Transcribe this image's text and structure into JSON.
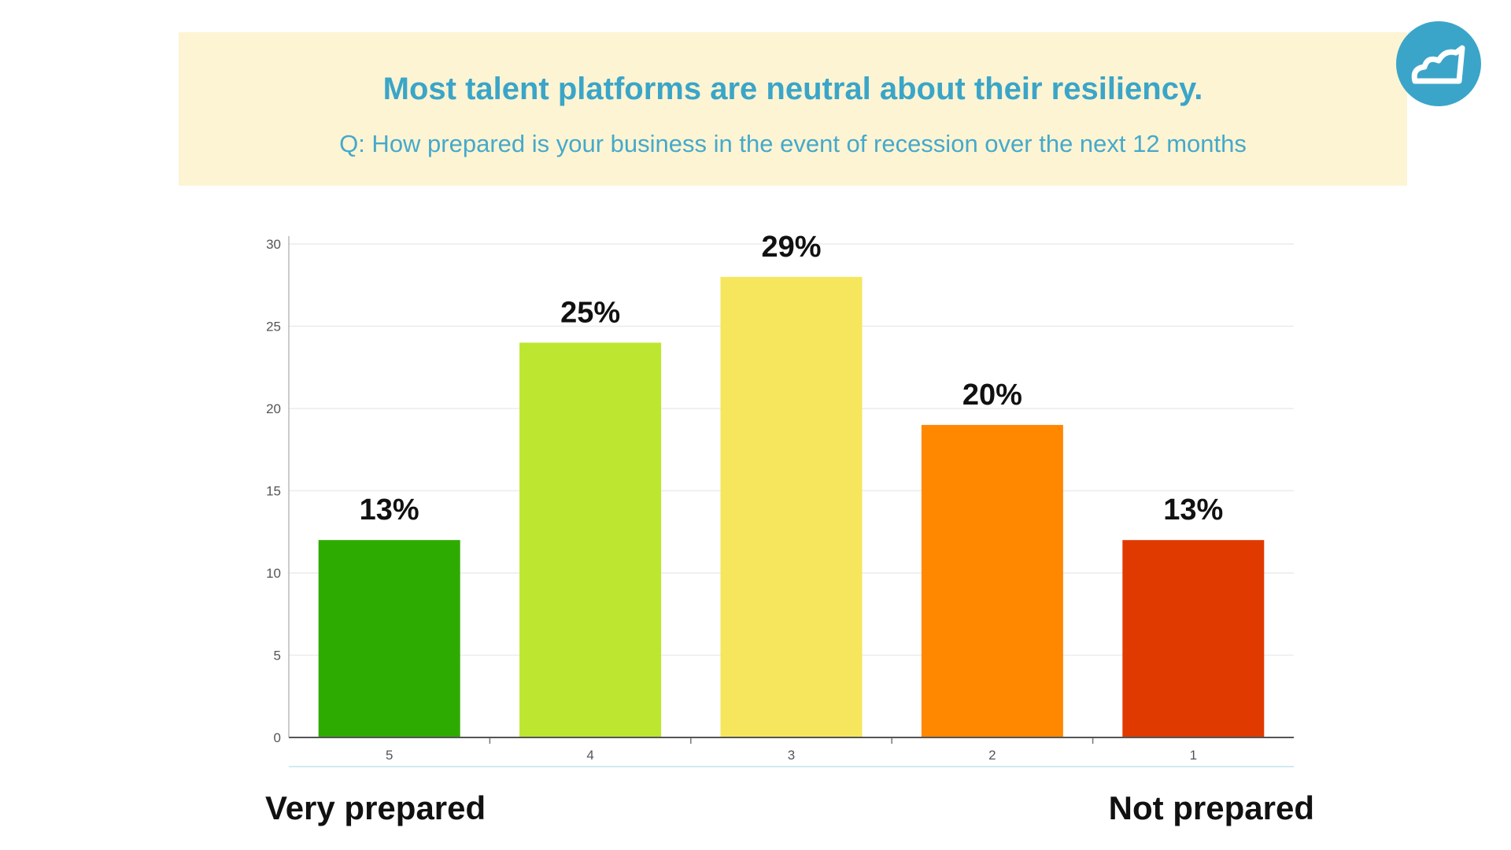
{
  "header": {
    "title": "Most talent platforms are neutral about their resiliency.",
    "subtitle": "Q: How prepared is your business in the event of recession over the next 12 months"
  },
  "logo": {
    "icon": "cloud-icon",
    "color": "#3aa5c8"
  },
  "scale_labels": {
    "left": "Very prepared",
    "right": "Not prepared"
  },
  "chart_data": {
    "type": "bar",
    "title": "",
    "xlabel": "",
    "ylabel": "",
    "categories": [
      "5",
      "4",
      "3",
      "2",
      "1"
    ],
    "values": [
      12,
      24,
      28,
      19,
      12
    ],
    "data_labels": [
      "13%",
      "25%",
      "29%",
      "20%",
      "13%"
    ],
    "colors": [
      "#2eab00",
      "#bce630",
      "#f6e65e",
      "#ff8800",
      "#e03a00"
    ],
    "ylim": [
      0,
      30
    ],
    "yticks": [
      0,
      5,
      10,
      15,
      20,
      25,
      30
    ],
    "grid": true,
    "legend": "none"
  }
}
